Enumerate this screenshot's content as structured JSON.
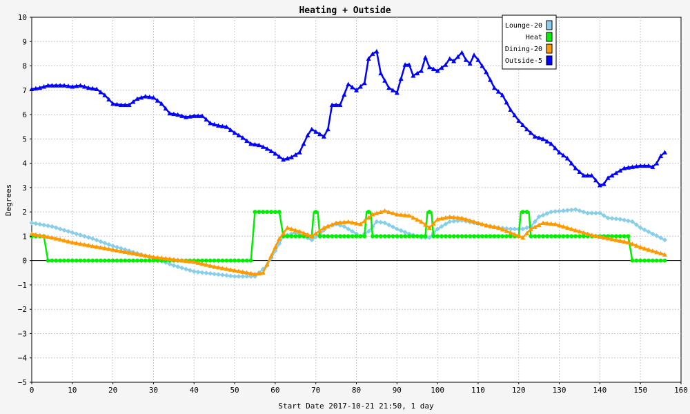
{
  "chart_data": {
    "type": "line",
    "title": "Heating + Outside",
    "xlabel": "Start Date 2017-10-21 21:50, 1 day",
    "ylabel": "Degrees",
    "xlim": [
      0,
      160
    ],
    "ylim": [
      -5,
      10
    ],
    "x_ticks": [
      0,
      10,
      20,
      30,
      40,
      50,
      60,
      70,
      80,
      90,
      100,
      110,
      120,
      130,
      140,
      150,
      160
    ],
    "y_ticks": [
      -5,
      -4,
      -3,
      -2,
      -1,
      0,
      1,
      2,
      3,
      4,
      5,
      6,
      7,
      8,
      9,
      10
    ],
    "grid": true,
    "legend_position": "top-right",
    "series": [
      {
        "name": "Lounge-20",
        "color": "#87ceeb",
        "marker": "diamond",
        "points": [
          [
            0,
            1.55
          ],
          [
            5,
            1.4
          ],
          [
            10,
            1.15
          ],
          [
            15,
            0.9
          ],
          [
            20,
            0.6
          ],
          [
            25,
            0.35
          ],
          [
            30,
            0.1
          ],
          [
            35,
            -0.2
          ],
          [
            40,
            -0.45
          ],
          [
            45,
            -0.55
          ],
          [
            50,
            -0.65
          ],
          [
            55,
            -0.65
          ],
          [
            58,
            -0.2
          ],
          [
            60,
            0.4
          ],
          [
            62,
            1.0
          ],
          [
            65,
            1.15
          ],
          [
            67,
            1.0
          ],
          [
            69,
            0.85
          ],
          [
            71,
            1.1
          ],
          [
            73,
            1.4
          ],
          [
            75,
            1.5
          ],
          [
            77,
            1.4
          ],
          [
            79,
            1.2
          ],
          [
            81,
            1.0
          ],
          [
            83,
            1.2
          ],
          [
            85,
            1.6
          ],
          [
            87,
            1.55
          ],
          [
            90,
            1.3
          ],
          [
            93,
            1.1
          ],
          [
            96,
            0.95
          ],
          [
            98,
            0.95
          ],
          [
            100,
            1.3
          ],
          [
            103,
            1.6
          ],
          [
            106,
            1.65
          ],
          [
            109,
            1.55
          ],
          [
            112,
            1.45
          ],
          [
            115,
            1.35
          ],
          [
            118,
            1.3
          ],
          [
            121,
            1.3
          ],
          [
            123,
            1.4
          ],
          [
            125,
            1.8
          ],
          [
            128,
            2.0
          ],
          [
            131,
            2.05
          ],
          [
            134,
            2.1
          ],
          [
            137,
            1.95
          ],
          [
            140,
            1.95
          ],
          [
            142,
            1.75
          ],
          [
            145,
            1.7
          ],
          [
            148,
            1.6
          ],
          [
            150,
            1.35
          ],
          [
            153,
            1.1
          ],
          [
            156,
            0.85
          ]
        ]
      },
      {
        "name": "Heat",
        "color": "#00ee00",
        "marker": "circle",
        "points": [
          [
            0,
            1
          ],
          [
            3,
            1
          ],
          [
            4,
            0
          ],
          [
            54,
            0
          ],
          [
            55,
            2
          ],
          [
            61,
            2
          ],
          [
            62,
            1
          ],
          [
            69,
            1
          ],
          [
            69.5,
            2
          ],
          [
            70.5,
            2
          ],
          [
            71,
            1
          ],
          [
            82,
            1
          ],
          [
            82.5,
            2
          ],
          [
            83.5,
            2
          ],
          [
            84,
            1
          ],
          [
            97,
            1
          ],
          [
            97.5,
            2
          ],
          [
            98.5,
            2
          ],
          [
            99,
            1
          ],
          [
            120,
            1
          ],
          [
            120.5,
            2
          ],
          [
            122.5,
            2
          ],
          [
            123,
            1
          ],
          [
            147,
            1
          ],
          [
            148,
            0
          ],
          [
            156,
            0
          ]
        ]
      },
      {
        "name": "Dining-20",
        "color": "#ff9900",
        "marker": "triangle",
        "points": [
          [
            0,
            1.1
          ],
          [
            5,
            0.95
          ],
          [
            10,
            0.75
          ],
          [
            15,
            0.6
          ],
          [
            20,
            0.45
          ],
          [
            25,
            0.3
          ],
          [
            30,
            0.15
          ],
          [
            35,
            0.05
          ],
          [
            40,
            -0.05
          ],
          [
            45,
            -0.25
          ],
          [
            50,
            -0.4
          ],
          [
            55,
            -0.55
          ],
          [
            57,
            -0.5
          ],
          [
            59,
            0.2
          ],
          [
            61,
            0.9
          ],
          [
            63,
            1.35
          ],
          [
            66,
            1.2
          ],
          [
            69,
            1.0
          ],
          [
            72,
            1.35
          ],
          [
            75,
            1.55
          ],
          [
            78,
            1.6
          ],
          [
            81,
            1.5
          ],
          [
            84,
            1.9
          ],
          [
            87,
            2.05
          ],
          [
            90,
            1.9
          ],
          [
            93,
            1.85
          ],
          [
            96,
            1.6
          ],
          [
            98,
            1.35
          ],
          [
            100,
            1.7
          ],
          [
            103,
            1.8
          ],
          [
            106,
            1.75
          ],
          [
            109,
            1.6
          ],
          [
            112,
            1.45
          ],
          [
            115,
            1.35
          ],
          [
            118,
            1.15
          ],
          [
            121,
            0.95
          ],
          [
            123,
            1.3
          ],
          [
            126,
            1.55
          ],
          [
            129,
            1.5
          ],
          [
            132,
            1.35
          ],
          [
            135,
            1.2
          ],
          [
            138,
            1.05
          ],
          [
            141,
            0.95
          ],
          [
            144,
            0.85
          ],
          [
            147,
            0.75
          ],
          [
            150,
            0.55
          ],
          [
            153,
            0.4
          ],
          [
            156,
            0.25
          ]
        ]
      },
      {
        "name": "Outside-5",
        "color": "#0000ff",
        "marker": "triangle",
        "points": [
          [
            0,
            7.05
          ],
          [
            2,
            7.1
          ],
          [
            4,
            7.2
          ],
          [
            8,
            7.2
          ],
          [
            10,
            7.15
          ],
          [
            12,
            7.2
          ],
          [
            14,
            7.1
          ],
          [
            16,
            7.05
          ],
          [
            18,
            6.8
          ],
          [
            20,
            6.45
          ],
          [
            22,
            6.4
          ],
          [
            24,
            6.4
          ],
          [
            26,
            6.65
          ],
          [
            28,
            6.75
          ],
          [
            30,
            6.7
          ],
          [
            32,
            6.45
          ],
          [
            34,
            6.05
          ],
          [
            36,
            6.0
          ],
          [
            38,
            5.9
          ],
          [
            40,
            5.95
          ],
          [
            42,
            5.95
          ],
          [
            44,
            5.65
          ],
          [
            46,
            5.55
          ],
          [
            48,
            5.5
          ],
          [
            50,
            5.25
          ],
          [
            52,
            5.05
          ],
          [
            54,
            4.8
          ],
          [
            56,
            4.75
          ],
          [
            58,
            4.6
          ],
          [
            60,
            4.4
          ],
          [
            62,
            4.15
          ],
          [
            64,
            4.25
          ],
          [
            66,
            4.45
          ],
          [
            68,
            5.15
          ],
          [
            69,
            5.4
          ],
          [
            70,
            5.3
          ],
          [
            72,
            5.1
          ],
          [
            73,
            5.4
          ],
          [
            74,
            6.4
          ],
          [
            76,
            6.4
          ],
          [
            78,
            7.25
          ],
          [
            80,
            7.0
          ],
          [
            82,
            7.3
          ],
          [
            83,
            8.3
          ],
          [
            84,
            8.5
          ],
          [
            85,
            8.6
          ],
          [
            86,
            7.7
          ],
          [
            88,
            7.1
          ],
          [
            90,
            6.9
          ],
          [
            92,
            8.05
          ],
          [
            93,
            8.05
          ],
          [
            94,
            7.6
          ],
          [
            96,
            7.8
          ],
          [
            97,
            8.35
          ],
          [
            98,
            7.95
          ],
          [
            100,
            7.8
          ],
          [
            102,
            8.05
          ],
          [
            103,
            8.3
          ],
          [
            104,
            8.2
          ],
          [
            106,
            8.55
          ],
          [
            107,
            8.25
          ],
          [
            108,
            8.1
          ],
          [
            109,
            8.45
          ],
          [
            110,
            8.25
          ],
          [
            112,
            7.75
          ],
          [
            114,
            7.1
          ],
          [
            116,
            6.8
          ],
          [
            118,
            6.2
          ],
          [
            120,
            5.75
          ],
          [
            122,
            5.4
          ],
          [
            124,
            5.1
          ],
          [
            126,
            5.0
          ],
          [
            128,
            4.8
          ],
          [
            130,
            4.45
          ],
          [
            132,
            4.2
          ],
          [
            134,
            3.8
          ],
          [
            136,
            3.5
          ],
          [
            138,
            3.5
          ],
          [
            140,
            3.1
          ],
          [
            141,
            3.15
          ],
          [
            142,
            3.4
          ],
          [
            144,
            3.6
          ],
          [
            146,
            3.8
          ],
          [
            148,
            3.85
          ],
          [
            150,
            3.9
          ],
          [
            152,
            3.9
          ],
          [
            153,
            3.85
          ],
          [
            154,
            4.0
          ],
          [
            155,
            4.3
          ],
          [
            156,
            4.45
          ]
        ]
      }
    ]
  }
}
